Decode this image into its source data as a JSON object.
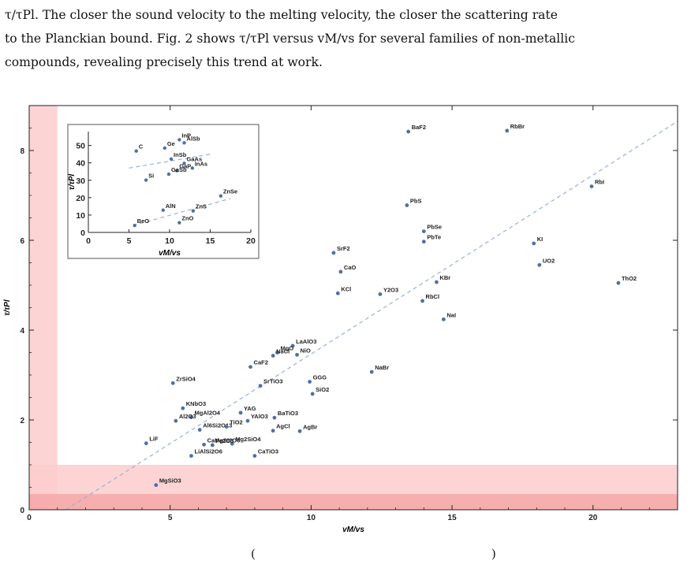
{
  "paragraph": {
    "line1": "τ/τPl. The closer the sound velocity to the melting velocity, the closer the scattering rate",
    "line2": "to the Planckian bound. Fig. 2 shows τ/τPl versus vM/vs for several families of non-metallic",
    "line3": "compounds, revealing precisely this trend at work."
  },
  "bottom_fragments": [
    "(",
    ")"
  ],
  "colors": {
    "point": "#4f6fa8",
    "fit_line": "#9bb0d3",
    "band_light": "#fbcdcd",
    "band_dark": "#f5a1a1",
    "axis": "#222222",
    "inset_border": "#555555"
  },
  "chart_data": [
    {
      "type": "scatter",
      "xlabel": "vM/vs",
      "ylabel": "τ/τPl",
      "xlim": [
        0,
        23
      ],
      "ylim": [
        0,
        9
      ],
      "xticks": [
        0,
        5,
        10,
        15,
        20
      ],
      "yticks": [
        0,
        2,
        4,
        6,
        8
      ],
      "grid": false,
      "frame": true,
      "fit_line": {
        "x": [
          1.3,
          23
        ],
        "y": [
          0,
          8.65
        ],
        "style": "dashed"
      },
      "shaded_bands": [
        {
          "axis": "x",
          "from": 0,
          "to": 1,
          "shade": "light"
        },
        {
          "axis": "y",
          "from": 0,
          "to": 1,
          "shade": "light"
        },
        {
          "axis": "y",
          "from": 0,
          "to": 0.35,
          "shade": "dark"
        }
      ],
      "points": [
        {
          "label": "BaF2",
          "x": 13.45,
          "y": 8.42
        },
        {
          "label": "RbBr",
          "x": 16.95,
          "y": 8.44
        },
        {
          "label": "RbI",
          "x": 19.95,
          "y": 7.2
        },
        {
          "label": "PbS",
          "x": 13.4,
          "y": 6.78
        },
        {
          "label": "PbSe",
          "x": 14.0,
          "y": 6.2
        },
        {
          "label": "PbTe",
          "x": 14.0,
          "y": 5.97
        },
        {
          "label": "KI",
          "x": 17.9,
          "y": 5.93
        },
        {
          "label": "UO2",
          "x": 18.1,
          "y": 5.45
        },
        {
          "label": "SrF2",
          "x": 10.8,
          "y": 5.72
        },
        {
          "label": "CaO",
          "x": 11.05,
          "y": 5.3
        },
        {
          "label": "KCl",
          "x": 10.95,
          "y": 4.82
        },
        {
          "label": "Y2O3",
          "x": 12.45,
          "y": 4.8
        },
        {
          "label": "KBr",
          "x": 14.45,
          "y": 5.07
        },
        {
          "label": "RbCl",
          "x": 13.95,
          "y": 4.65
        },
        {
          "label": "ThO2",
          "x": 20.9,
          "y": 5.05
        },
        {
          "label": "NaI",
          "x": 14.7,
          "y": 4.24
        },
        {
          "label": "LaAlO3",
          "x": 9.35,
          "y": 3.65
        },
        {
          "label": "MgO",
          "x": 8.8,
          "y": 3.5
        },
        {
          "label": "NaCl",
          "x": 8.65,
          "y": 3.43
        },
        {
          "label": "NiO",
          "x": 9.5,
          "y": 3.45
        },
        {
          "label": "CaF2",
          "x": 7.85,
          "y": 3.18
        },
        {
          "label": "NaBr",
          "x": 12.15,
          "y": 3.07
        },
        {
          "label": "ZrSiO4",
          "x": 5.1,
          "y": 2.82
        },
        {
          "label": "GGG",
          "x": 9.95,
          "y": 2.85
        },
        {
          "label": "SrTiO3",
          "x": 8.2,
          "y": 2.76
        },
        {
          "label": "SiO2",
          "x": 10.05,
          "y": 2.58
        },
        {
          "label": "KNbO3",
          "x": 5.45,
          "y": 2.26
        },
        {
          "label": "YAG",
          "x": 7.5,
          "y": 2.16
        },
        {
          "label": "MgAl2O4",
          "x": 5.75,
          "y": 2.06
        },
        {
          "label": "Al2O3",
          "x": 5.2,
          "y": 1.98
        },
        {
          "label": "BaTiO3",
          "x": 8.7,
          "y": 2.05
        },
        {
          "label": "YAlO3",
          "x": 7.75,
          "y": 1.98
        },
        {
          "label": "Al6Si2O13",
          "x": 6.05,
          "y": 1.78
        },
        {
          "label": "TiO2",
          "x": 7.0,
          "y": 1.85
        },
        {
          "label": "AgCl",
          "x": 8.65,
          "y": 1.76
        },
        {
          "label": "AgBr",
          "x": 9.6,
          "y": 1.75
        },
        {
          "label": "LiF",
          "x": 4.15,
          "y": 1.48
        },
        {
          "label": "CaMgSi2O6",
          "x": 6.2,
          "y": 1.45
        },
        {
          "label": "Mg2SiO4",
          "x": 7.2,
          "y": 1.47
        },
        {
          "label": "LiAlSi2O6",
          "x": 5.75,
          "y": 1.2
        },
        {
          "label": "Fe2O3",
          "x": 6.5,
          "y": 1.44
        },
        {
          "label": "CaTiO3",
          "x": 8.0,
          "y": 1.2
        },
        {
          "label": "MgSiO3",
          "x": 4.5,
          "y": 0.55
        }
      ]
    },
    {
      "type": "scatter",
      "inset": true,
      "xlabel": "vM/vs",
      "ylabel": "τ/τPl",
      "xlim": [
        0,
        20
      ],
      "ylim": [
        0,
        58
      ],
      "xticks": [
        0,
        5,
        10,
        15,
        20
      ],
      "yticks": [
        0,
        10,
        20,
        30,
        40,
        50
      ],
      "fit_lines": [
        {
          "x": [
            5.0,
            15.0
          ],
          "y": [
            37.0,
            45.0
          ],
          "style": "dashed"
        },
        {
          "x": [
            5.5,
            17.5
          ],
          "y": [
            4.0,
            19.5
          ],
          "style": "dashed"
        }
      ],
      "points": [
        {
          "label": "InP",
          "x": 11.2,
          "y": 53.3
        },
        {
          "label": "AlSb",
          "x": 11.8,
          "y": 51.5
        },
        {
          "label": "Ge",
          "x": 9.4,
          "y": 48.5
        },
        {
          "label": "C",
          "x": 5.9,
          "y": 46.8
        },
        {
          "label": "InSb",
          "x": 10.2,
          "y": 42.2
        },
        {
          "label": "GaAs",
          "x": 11.8,
          "y": 39.7
        },
        {
          "label": "InAs",
          "x": 12.8,
          "y": 37.0
        },
        {
          "label": "GaP",
          "x": 10.9,
          "y": 35.5
        },
        {
          "label": "GaSb",
          "x": 9.9,
          "y": 33.5
        },
        {
          "label": "Si",
          "x": 7.1,
          "y": 30.1
        },
        {
          "label": "ZnSe",
          "x": 16.3,
          "y": 21.0
        },
        {
          "label": "AlN",
          "x": 9.2,
          "y": 12.8
        },
        {
          "label": "ZnS",
          "x": 12.9,
          "y": 12.4
        },
        {
          "label": "ZnO",
          "x": 11.2,
          "y": 5.6
        },
        {
          "label": "BeO",
          "x": 5.7,
          "y": 4.0
        }
      ]
    }
  ]
}
